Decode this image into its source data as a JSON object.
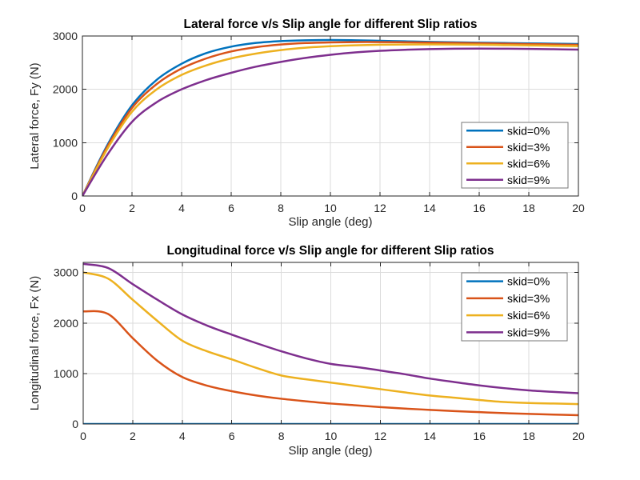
{
  "figure": {
    "background": "#ffffff"
  },
  "colors": {
    "series": [
      "#0072BD",
      "#D95319",
      "#EDB120",
      "#7E2F8E"
    ],
    "grid": "#DBDBDB",
    "axis": "#262626",
    "tick_label": "#262626",
    "title": "#000000",
    "legend_border": "#777777",
    "legend_background": "#FFFFFF"
  },
  "chart_data": [
    {
      "type": "line",
      "title": "Lateral force v/s Slip angle for different Slip ratios",
      "xlabel": "Slip angle (deg)",
      "ylabel": "Lateral force, Fy (N)",
      "xlim": [
        0,
        20
      ],
      "ylim": [
        0,
        3000
      ],
      "xticks": [
        0,
        2,
        4,
        6,
        8,
        10,
        12,
        14,
        16,
        18,
        20
      ],
      "yticks": [
        0,
        1000,
        2000,
        3000
      ],
      "grid": true,
      "legend": {
        "location": "inside-lower-right",
        "entries": [
          "skid=0%",
          "skid=3%",
          "skid=6%",
          "skid=9%"
        ]
      },
      "x": [
        0,
        1,
        2,
        3,
        4,
        5,
        6,
        7,
        8,
        9,
        10,
        11,
        12,
        13,
        14,
        15,
        16,
        17,
        18,
        19,
        20
      ],
      "series": [
        {
          "name": "skid=0%",
          "color": "#0072BD",
          "values": [
            0,
            950,
            1700,
            2180,
            2480,
            2680,
            2800,
            2870,
            2905,
            2920,
            2925,
            2920,
            2910,
            2900,
            2890,
            2882,
            2875,
            2868,
            2862,
            2856,
            2850
          ]
        },
        {
          "name": "skid=3%",
          "color": "#D95319",
          "values": [
            0,
            920,
            1650,
            2100,
            2390,
            2580,
            2710,
            2790,
            2840,
            2868,
            2880,
            2886,
            2886,
            2882,
            2877,
            2870,
            2863,
            2856,
            2849,
            2842,
            2835
          ]
        },
        {
          "name": "skid=6%",
          "color": "#EDB120",
          "values": [
            0,
            880,
            1580,
            2000,
            2270,
            2450,
            2580,
            2670,
            2735,
            2780,
            2808,
            2826,
            2836,
            2841,
            2842,
            2840,
            2836,
            2830,
            2824,
            2817,
            2810
          ]
        },
        {
          "name": "skid=9%",
          "color": "#7E2F8E",
          "values": [
            0,
            770,
            1390,
            1760,
            2000,
            2175,
            2310,
            2425,
            2515,
            2590,
            2648,
            2692,
            2722,
            2742,
            2755,
            2762,
            2764,
            2762,
            2758,
            2752,
            2745
          ]
        }
      ]
    },
    {
      "type": "line",
      "title": "Longitudinal force v/s Slip angle for different Slip ratios",
      "xlabel": "Slip angle (deg)",
      "ylabel": "Longitudinal force, Fx (N)",
      "xlim": [
        0,
        20
      ],
      "ylim": [
        0,
        3200
      ],
      "xticks": [
        0,
        2,
        4,
        6,
        8,
        10,
        12,
        14,
        16,
        18,
        20
      ],
      "yticks": [
        0,
        1000,
        2000,
        3000
      ],
      "grid": true,
      "legend": {
        "location": "inside-upper-right",
        "entries": [
          "skid=0%",
          "skid=3%",
          "skid=6%",
          "skid=9%"
        ]
      },
      "x": [
        0,
        1,
        2,
        3,
        4,
        5,
        6,
        7,
        8,
        9,
        10,
        11,
        12,
        13,
        14,
        15,
        16,
        17,
        18,
        19,
        20
      ],
      "series": [
        {
          "name": "skid=0%",
          "color": "#0072BD",
          "values": [
            0,
            0,
            0,
            0,
            0,
            0,
            0,
            0,
            0,
            0,
            0,
            0,
            0,
            0,
            0,
            0,
            0,
            0,
            0,
            0,
            0
          ]
        },
        {
          "name": "skid=3%",
          "color": "#D95319",
          "values": [
            2230,
            2180,
            1700,
            1250,
            930,
            760,
            650,
            565,
            500,
            450,
            405,
            370,
            335,
            305,
            280,
            255,
            235,
            215,
            200,
            187,
            175
          ]
        },
        {
          "name": "skid=6%",
          "color": "#EDB120",
          "values": [
            3000,
            2880,
            2460,
            2040,
            1650,
            1440,
            1280,
            1110,
            960,
            885,
            820,
            755,
            690,
            625,
            565,
            520,
            475,
            435,
            415,
            405,
            395
          ]
        },
        {
          "name": "skid=9%",
          "color": "#7E2F8E",
          "values": [
            3170,
            3090,
            2770,
            2460,
            2170,
            1950,
            1770,
            1600,
            1440,
            1300,
            1190,
            1130,
            1060,
            985,
            900,
            830,
            765,
            710,
            665,
            635,
            610
          ]
        }
      ]
    }
  ]
}
